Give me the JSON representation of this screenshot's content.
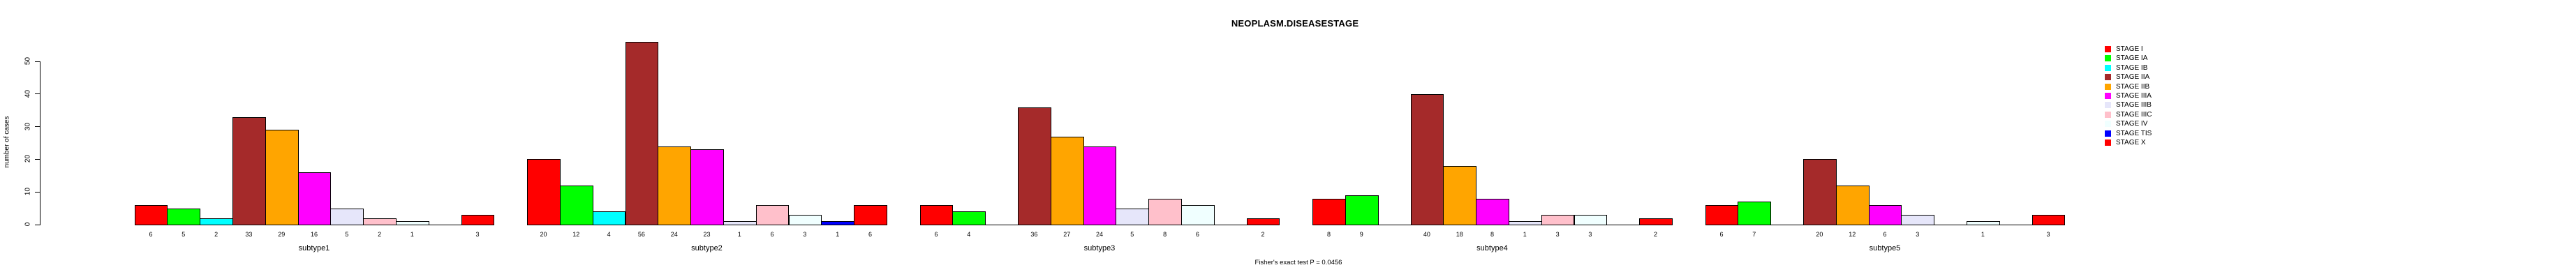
{
  "title": "NEOPLASM.DISEASESTAGE",
  "footer": "Fisher's exact test P = 0.0456",
  "y_axis": {
    "label": "number of cases",
    "ticks": [
      0,
      10,
      20,
      30,
      40,
      50
    ]
  },
  "legend": {
    "position": "right",
    "entries": [
      {
        "label": "STAGE I",
        "color": "#FF0000"
      },
      {
        "label": "STAGE IA",
        "color": "#00FF00"
      },
      {
        "label": "STAGE IB",
        "color": "#00FFFF"
      },
      {
        "label": "STAGE IIA",
        "color": "#A52A2A"
      },
      {
        "label": "STAGE IIB",
        "color": "#FFA500"
      },
      {
        "label": "STAGE IIIA",
        "color": "#FF00FF"
      },
      {
        "label": "STAGE IIIB",
        "color": "#E6E6FA"
      },
      {
        "label": "STAGE IIIC",
        "color": "#FFC0CB"
      },
      {
        "label": "STAGE IV",
        "color": "#F0FFFF"
      },
      {
        "label": "STAGE TIS",
        "color": "#0000FF"
      },
      {
        "label": "STAGE X",
        "color": "#FF0000"
      }
    ]
  },
  "chart_data": {
    "type": "bar",
    "title": "NEOPLASM.DISEASESTAGE",
    "xlabel": "",
    "ylabel": "number of cases",
    "ylim": [
      0,
      50
    ],
    "grid": false,
    "legend_position": "right",
    "series_names": [
      "STAGE I",
      "STAGE IA",
      "STAGE IB",
      "STAGE IIA",
      "STAGE IIB",
      "STAGE IIIA",
      "STAGE IIIB",
      "STAGE IIIC",
      "STAGE IV",
      "STAGE TIS",
      "STAGE X"
    ],
    "series_colors": [
      "#FF0000",
      "#00FF00",
      "#00FFFF",
      "#A52A2A",
      "#FFA500",
      "#FF00FF",
      "#E6E6FA",
      "#FFC0CB",
      "#F0FFFF",
      "#0000FF",
      "#FF0000"
    ],
    "categories": [
      "subtype1",
      "subtype2",
      "subtype3",
      "subtype4",
      "subtype5"
    ],
    "groups": [
      {
        "label": "subtype1",
        "values": [
          6,
          5,
          2,
          33,
          29,
          16,
          5,
          2,
          1,
          0,
          3
        ]
      },
      {
        "label": "subtype2",
        "values": [
          20,
          12,
          4,
          56,
          24,
          23,
          1,
          6,
          3,
          1,
          6
        ]
      },
      {
        "label": "subtype3",
        "values": [
          6,
          4,
          0,
          36,
          27,
          24,
          5,
          8,
          6,
          0,
          2
        ]
      },
      {
        "label": "subtype4",
        "values": [
          8,
          9,
          0,
          40,
          18,
          8,
          1,
          3,
          3,
          0,
          2
        ]
      },
      {
        "label": "subtype5",
        "values": [
          6,
          7,
          0,
          20,
          12,
          6,
          3,
          0,
          1,
          0,
          3
        ]
      }
    ],
    "annotation": "Fisher's exact test P = 0.0456",
    "bar_value_labels_shown_for_nonzero_only": true
  }
}
